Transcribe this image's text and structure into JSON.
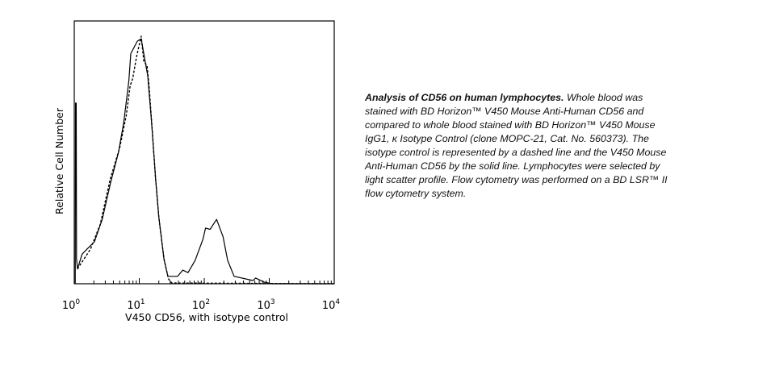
{
  "chart_data": {
    "type": "line",
    "title": "",
    "xlabel": "V450 CD56, with isotype control",
    "ylabel": "Relative Cell Number",
    "xscale": "log",
    "xlim_log10": [
      0,
      4
    ],
    "ylim": [
      0,
      100
    ],
    "x_ticks": [
      {
        "base": "10",
        "exp": "0"
      },
      {
        "base": "10",
        "exp": "1"
      },
      {
        "base": "10",
        "exp": "2"
      },
      {
        "base": "10",
        "exp": "3"
      },
      {
        "base": "10",
        "exp": "4"
      }
    ],
    "grid": false,
    "series": [
      {
        "name": "V450 Mouse Anti-Human CD56",
        "style": "solid",
        "log10_x": [
          0.015,
          0.02,
          0.03,
          0.035,
          0.05,
          0.12,
          0.31,
          0.43,
          0.56,
          0.68,
          0.76,
          0.84,
          0.87,
          0.97,
          1.03,
          1.07,
          1.13,
          1.19,
          1.25,
          1.3,
          1.38,
          1.44,
          1.59,
          1.67,
          1.75,
          1.86,
          1.98,
          2.02,
          2.09,
          2.19,
          2.29,
          2.36,
          2.46,
          2.75,
          2.79,
          2.92,
          3.04,
          4.0
        ],
        "y": [
          0,
          73,
          73,
          10,
          6,
          12,
          17,
          26,
          41,
          53,
          65,
          82,
          93,
          98,
          99,
          93,
          84,
          65,
          43,
          27,
          10,
          3,
          3,
          5.5,
          4.5,
          9.4,
          18,
          22.5,
          22,
          26,
          19,
          9.4,
          3,
          1.3,
          2.3,
          0.7,
          0,
          0
        ]
      },
      {
        "name": "Isotype Control",
        "style": "dashed",
        "log10_x": [
          0.05,
          0.1,
          0.25,
          0.4,
          0.55,
          0.7,
          0.8,
          0.86,
          0.9,
          0.96,
          1.03,
          1.07,
          1.12,
          1.15,
          1.2,
          1.25,
          1.3,
          1.38,
          1.45,
          1.5,
          4.0
        ],
        "y": [
          6,
          8,
          14,
          24,
          42,
          55,
          68,
          80,
          83,
          92,
          100,
          90,
          88,
          80,
          62,
          43,
          27,
          10,
          2,
          0.3,
          0
        ]
      }
    ]
  },
  "caption": {
    "bold": "Analysis of CD56 on human lymphocytes.",
    "text": " Whole blood was stained with BD Horizon™ V450 Mouse Anti-Human CD56 and compared to whole blood stained with BD Horizon™ V450 Mouse IgG1, κ Isotype Control (clone MOPC-21, Cat. No. 560373). The isotype control is represented by a dashed line and the V450 Mouse Anti-Human CD56 by the solid line. Lymphocytes were selected by light scatter profile. Flow cytometry was performed on a BD LSR™ II flow cytometry system."
  }
}
